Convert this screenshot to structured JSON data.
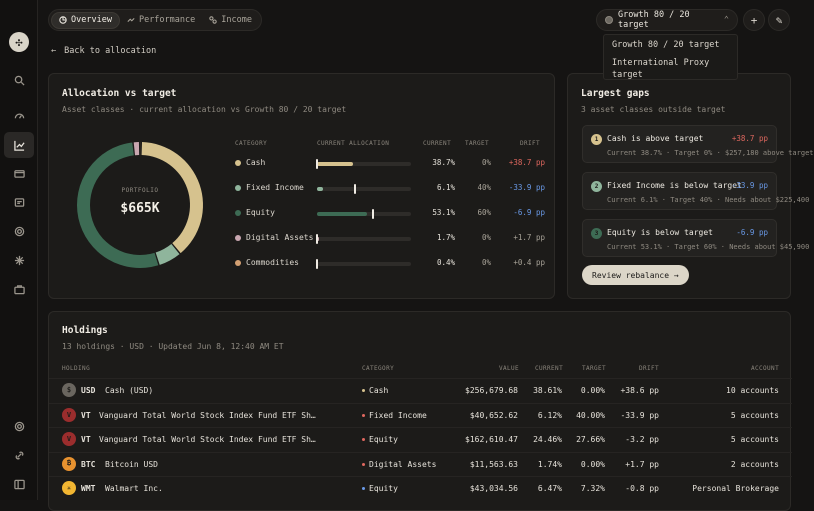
{
  "tabs": [
    {
      "label": "Overview",
      "icon": "pie-chart-icon"
    },
    {
      "label": "Performance",
      "icon": "trend-icon"
    },
    {
      "label": "Income",
      "icon": "income-icon"
    }
  ],
  "target_select": {
    "value": "Growth 80 / 20 target"
  },
  "target_options": [
    "Growth 80 / 20 target",
    "International Proxy target"
  ],
  "back_label": "Back to allocation",
  "allocation": {
    "title": "Allocation vs target",
    "subtitle": "Asset classes · current allocation vs Growth 80 / 20 target",
    "donut_label": "PORTFOLIO",
    "donut_value": "$665K",
    "headers": {
      "category": "CATEGORY",
      "current_allocation": "CURRENT ALLOCATION",
      "current": "CURRENT",
      "target": "TARGET",
      "drift": "DRIFT"
    },
    "rows": [
      {
        "category": "Cash",
        "color": "#d6c28e",
        "current": "38.7%",
        "target": "0%",
        "drift": "+38.7 pp",
        "current_frac": 0.387,
        "target_frac": 0.0,
        "drift_class": "pos"
      },
      {
        "category": "Fixed Income",
        "color": "#8fb59c",
        "current": "6.1%",
        "target": "40%",
        "drift": "-33.9 pp",
        "current_frac": 0.061,
        "target_frac": 0.4,
        "drift_class": "neg"
      },
      {
        "category": "Equity",
        "color": "#3d6b54",
        "current": "53.1%",
        "target": "60%",
        "drift": "-6.9 pp",
        "current_frac": 0.531,
        "target_frac": 0.6,
        "drift_class": "neg"
      },
      {
        "category": "Digital Assets",
        "color": "#c9a7b0",
        "current": "1.7%",
        "target": "0%",
        "drift": "+1.7 pp",
        "current_frac": 0.017,
        "target_frac": 0.0,
        "drift_class": "dim"
      },
      {
        "category": "Commodities",
        "color": "#d3a072",
        "current": "0.4%",
        "target": "0%",
        "drift": "+0.4 pp",
        "current_frac": 0.004,
        "target_frac": 0.0,
        "drift_class": "dim"
      }
    ]
  },
  "gaps": {
    "title": "Largest gaps",
    "subtitle": "3 asset classes outside target",
    "items": [
      {
        "num": "1",
        "title": "Cash is above target",
        "value": "+38.7 pp",
        "detail": "Current 38.7% · Target 0% · $257,180 above target",
        "badge_color": "#d6c28e",
        "value_class": "pos"
      },
      {
        "num": "2",
        "title": "Fixed Income is below target",
        "value": "-33.9 pp",
        "detail": "Current 6.1% · Target 40% · Needs about $225,400",
        "badge_color": "#8fb59c",
        "value_class": "neg"
      },
      {
        "num": "3",
        "title": "Equity is below target",
        "value": "-6.9 pp",
        "detail": "Current 53.1% · Target 60% · Needs about $45,900",
        "badge_color": "#3d6b54",
        "value_class": "neg"
      }
    ],
    "button": "Review rebalance →"
  },
  "holdings": {
    "title": "Holdings",
    "subtitle": "13 holdings · USD · Updated Jun 8, 12:40 AM ET",
    "headers": {
      "holding": "HOLDING",
      "category": "CATEGORY",
      "value": "VALUE",
      "current": "CURRENT",
      "target": "TARGET",
      "drift": "DRIFT",
      "account": "ACCOUNT"
    },
    "rows": [
      {
        "ticker": "USD",
        "name": "Cash (USD)",
        "icon": "dollar-icon",
        "icon_color": "#6a665f",
        "icon_glyph": "$",
        "category": "Cash",
        "cat_color": "#d6c28e",
        "value": "$256,679.68",
        "current": "38.61%",
        "target": "0.00%",
        "drift": "+38.6 pp",
        "drift_class": "pos",
        "account": "10 accounts"
      },
      {
        "ticker": "VT",
        "name": "Vanguard Total World Stock Index Fund ETF Sh…",
        "icon": "vanguard-icon",
        "icon_color": "#9b2d2d",
        "icon_glyph": "V",
        "category": "Fixed Income",
        "cat_color": "#e0685f",
        "value": "$40,652.62",
        "current": "6.12%",
        "target": "40.00%",
        "drift": "-33.9 pp",
        "drift_class": "neg",
        "account": "5 accounts"
      },
      {
        "ticker": "VT",
        "name": "Vanguard Total World Stock Index Fund ETF Sh…",
        "icon": "vanguard-icon",
        "icon_color": "#9b2d2d",
        "icon_glyph": "V",
        "category": "Equity",
        "cat_color": "#e0685f",
        "value": "$162,610.47",
        "current": "24.46%",
        "target": "27.66%",
        "drift": "-3.2 pp",
        "drift_class": "neg",
        "account": "5 accounts"
      },
      {
        "ticker": "BTC",
        "name": "Bitcoin USD",
        "icon": "bitcoin-icon",
        "icon_color": "#e8922f",
        "icon_glyph": "₿",
        "category": "Digital Assets",
        "cat_color": "#e0685f",
        "value": "$11,563.63",
        "current": "1.74%",
        "target": "0.00%",
        "drift": "+1.7 pp",
        "drift_class": "pos",
        "account": "2 accounts"
      },
      {
        "ticker": "WMT",
        "name": "Walmart Inc.",
        "icon": "walmart-icon",
        "icon_color": "#f2b632",
        "icon_glyph": "✳",
        "category": "Equity",
        "cat_color": "#6a9ae8",
        "value": "$43,034.56",
        "current": "6.47%",
        "target": "7.32%",
        "drift": "-0.8 pp",
        "drift_class": "neg",
        "account": "Personal Brokerage"
      }
    ]
  }
}
